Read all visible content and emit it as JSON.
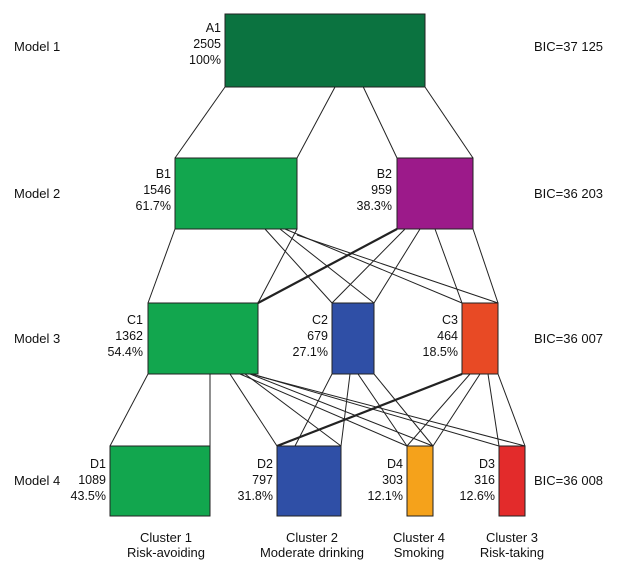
{
  "models": [
    {
      "label": "Model 1",
      "bic": "BIC=37 125"
    },
    {
      "label": "Model 2",
      "bic": "BIC=36 203"
    },
    {
      "label": "Model 3",
      "bic": "BIC=36 007"
    },
    {
      "label": "Model 4",
      "bic": "BIC=36 008"
    }
  ],
  "nodes": {
    "A1": {
      "id": "A1",
      "n": "2505",
      "pct": "100%",
      "color": "#0b7340"
    },
    "B1": {
      "id": "B1",
      "n": "1546",
      "pct": "61.7%",
      "color": "#12a64e"
    },
    "B2": {
      "id": "B2",
      "n": "959",
      "pct": "38.3%",
      "color": "#9c1a8a"
    },
    "C1": {
      "id": "C1",
      "n": "1362",
      "pct": "54.4%",
      "color": "#12a64e"
    },
    "C2": {
      "id": "C2",
      "n": "679",
      "pct": "27.1%",
      "color": "#2f4fa6"
    },
    "C3": {
      "id": "C3",
      "n": "464",
      "pct": "18.5%",
      "color": "#e84a25"
    },
    "D1": {
      "id": "D1",
      "n": "1089",
      "pct": "43.5%",
      "color": "#12a64e"
    },
    "D2": {
      "id": "D2",
      "n": "797",
      "pct": "31.8%",
      "color": "#2f4fa6"
    },
    "D4": {
      "id": "D4",
      "n": "303",
      "pct": "12.1%",
      "color": "#f5a21b"
    },
    "D3": {
      "id": "D3",
      "n": "316",
      "pct": "12.6%",
      "color": "#e32b2b"
    }
  },
  "clusters": [
    {
      "title": "Cluster 1",
      "name": "Risk-avoiding"
    },
    {
      "title": "Cluster 2",
      "name": "Moderate drinking"
    },
    {
      "title": "Cluster 4",
      "name": "Smoking"
    },
    {
      "title": "Cluster 3",
      "name": "Risk-taking"
    }
  ]
}
